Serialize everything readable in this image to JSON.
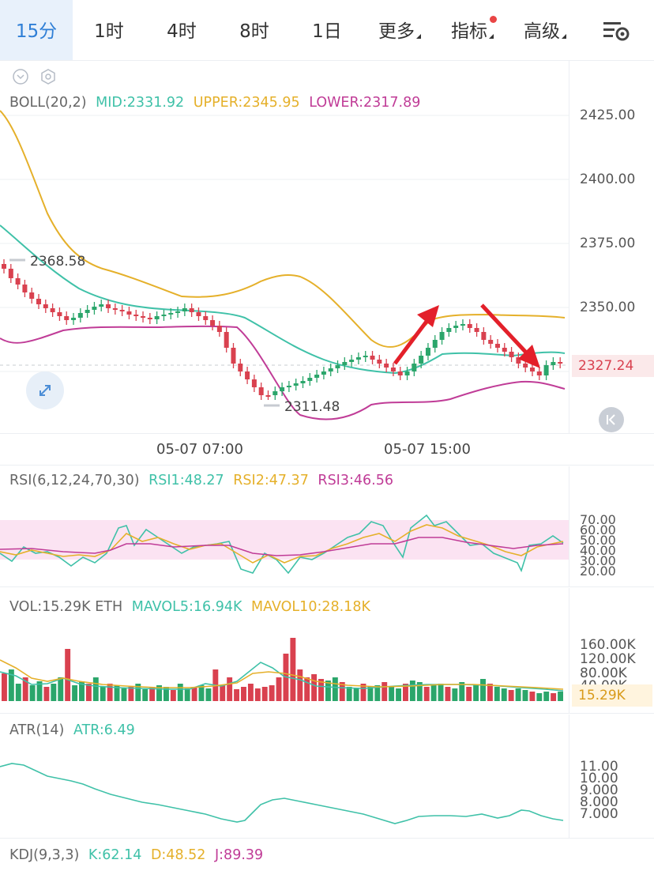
{
  "toolbar": {
    "tabs": [
      {
        "label": "15分",
        "active": true
      },
      {
        "label": "1时"
      },
      {
        "label": "4时"
      },
      {
        "label": "8时"
      },
      {
        "label": "1日"
      },
      {
        "label": "更多"
      },
      {
        "label": "指标"
      },
      {
        "label": "高级"
      }
    ],
    "settings_icon": "chart-settings-icon"
  },
  "boll": {
    "name": "BOLL(20,2)",
    "mid": "MID:2331.92",
    "upper": "UPPER:2345.95",
    "lower": "LOWER:2317.89",
    "high_label": "2368.58",
    "low_label": "2311.48",
    "axis": [
      "2425.00",
      "2400.00",
      "2375.00",
      "2350.00"
    ],
    "last_price": "2327.24",
    "dates": [
      "05-07 07:00",
      "05-07 15:00"
    ]
  },
  "rsi": {
    "name": "RSI(6,12,24,70,30)",
    "rsi1": "RSI1:48.27",
    "rsi2": "RSI2:47.37",
    "rsi3": "RSI3:46.56",
    "axis": [
      "70.00",
      "60.00",
      "50.00",
      "40.00",
      "30.00",
      "20.00"
    ]
  },
  "vol": {
    "name": "VOL:15.29K ETH",
    "mavol5": "MAVOL5:16.94K",
    "mavol10": "MAVOL10:28.18K",
    "axis": [
      "160.00K",
      "120.00K",
      "80.00K",
      "40.00K"
    ],
    "current": "15.29K"
  },
  "atr": {
    "name": "ATR(14)",
    "value": "ATR:6.49",
    "axis": [
      "11.00",
      "10.00",
      "9.000",
      "8.000",
      "7.000"
    ]
  },
  "kdj": {
    "name": "KDJ(9,3,3)",
    "k": "K:62.14",
    "d": "D:48.52",
    "j": "J:89.39"
  },
  "colors": {
    "up": "#2ba66b",
    "down": "#d9414f",
    "mid": "#3fc1a8",
    "upper": "#e5b02a",
    "lower": "#c03c97",
    "accent": "#2f7fd6",
    "arrow": "#e3202a"
  }
}
